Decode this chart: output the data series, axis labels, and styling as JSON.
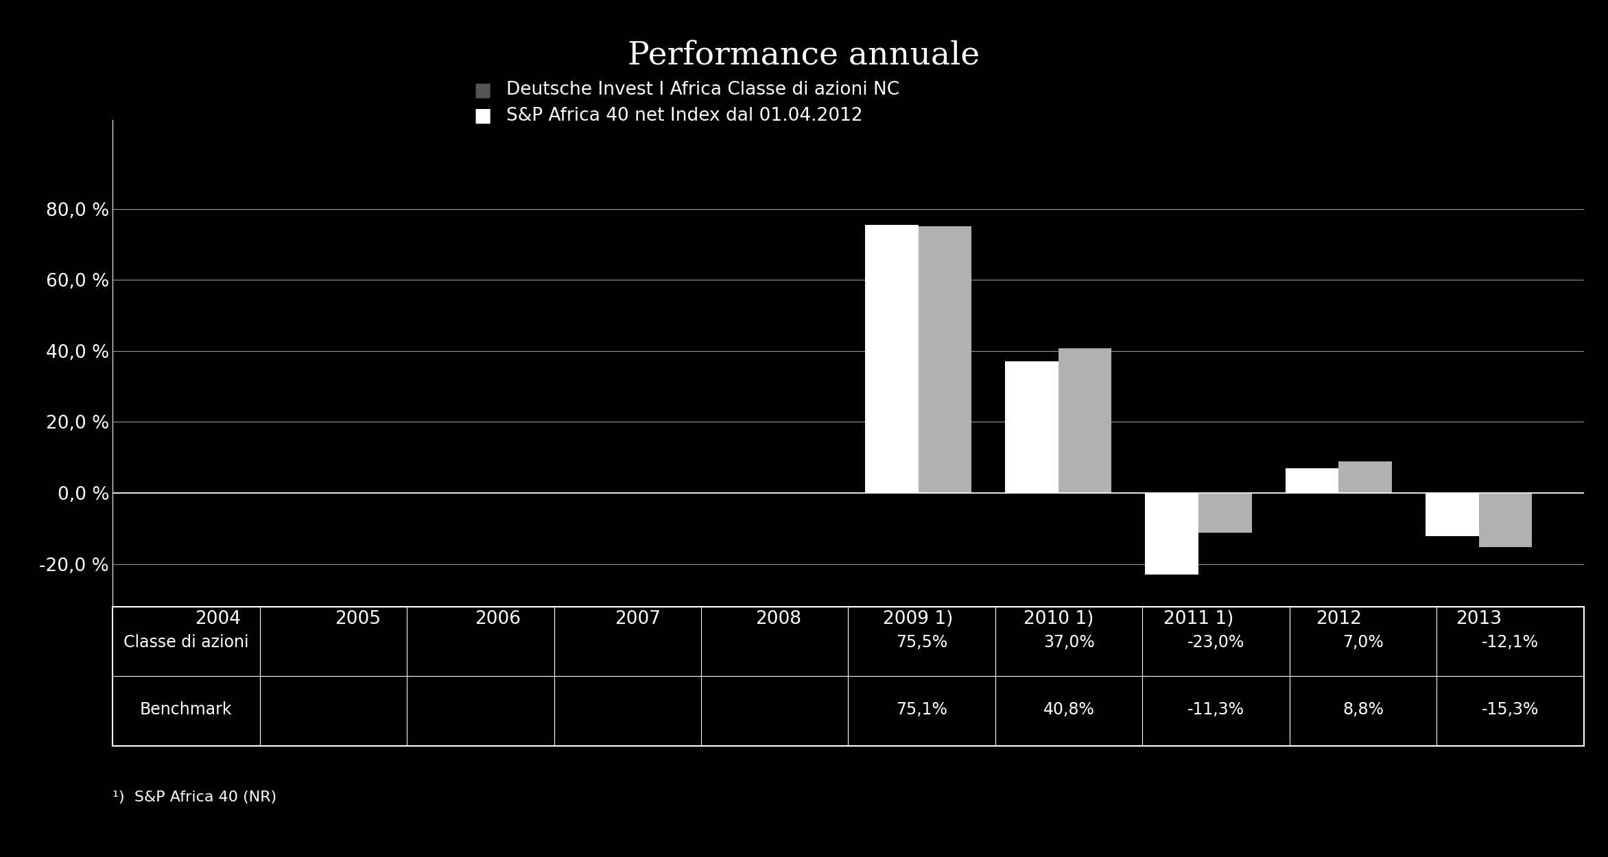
{
  "title": "Performance annuale",
  "background_color": "#000000",
  "text_color": "#ffffff",
  "chart_bg": "#000000",
  "year_labels": [
    "2004",
    "2005",
    "2006",
    "2007",
    "2008",
    "2009 ¹⁾",
    "2010 ¹⁾",
    "2011 ¹⁾",
    "2012",
    "2013"
  ],
  "year_labels_plain": [
    "2004",
    "2005",
    "2006",
    "2007",
    "2008",
    "2009 1)",
    "2010 1)",
    "2011 1)",
    "2012",
    "2013"
  ],
  "fund_values": [
    null,
    null,
    null,
    null,
    null,
    75.5,
    37.0,
    -23.0,
    7.0,
    -12.1
  ],
  "bench_values": [
    null,
    null,
    null,
    null,
    null,
    75.1,
    40.8,
    -11.3,
    8.8,
    -15.3
  ],
  "fund_color": "#ffffff",
  "bench_color": "#b0b0b0",
  "ylim": [
    -32,
    105
  ],
  "yticks": [
    -20,
    0,
    20,
    40,
    60,
    80
  ],
  "ytick_labels": [
    "-20,0 %",
    "0,0 %",
    "20,0 %",
    "40,0 %",
    "60,0 %",
    "80,0 %"
  ],
  "legend_fund": "Deutsche Invest I Africa Classe di azioni NC",
  "legend_bench": "S&P Africa 40 net Index dal 01.04.2012",
  "legend_fund_color": "#555555",
  "legend_bench_color": "#ffffff",
  "table_row1_label": "Classe di azioni",
  "table_row2_label": "Benchmark",
  "table_fund_values": [
    "",
    "",
    "",
    "",
    "",
    "75,5%",
    "37,0%",
    "-23,0%",
    "7,0%",
    "-12,1%"
  ],
  "table_bench_values": [
    "",
    "",
    "",
    "",
    "",
    "75,1%",
    "40,8%",
    "-11,3%",
    "8,8%",
    "-15,3%"
  ],
  "footnote": "¹)  S&P Africa 40 (NR)"
}
